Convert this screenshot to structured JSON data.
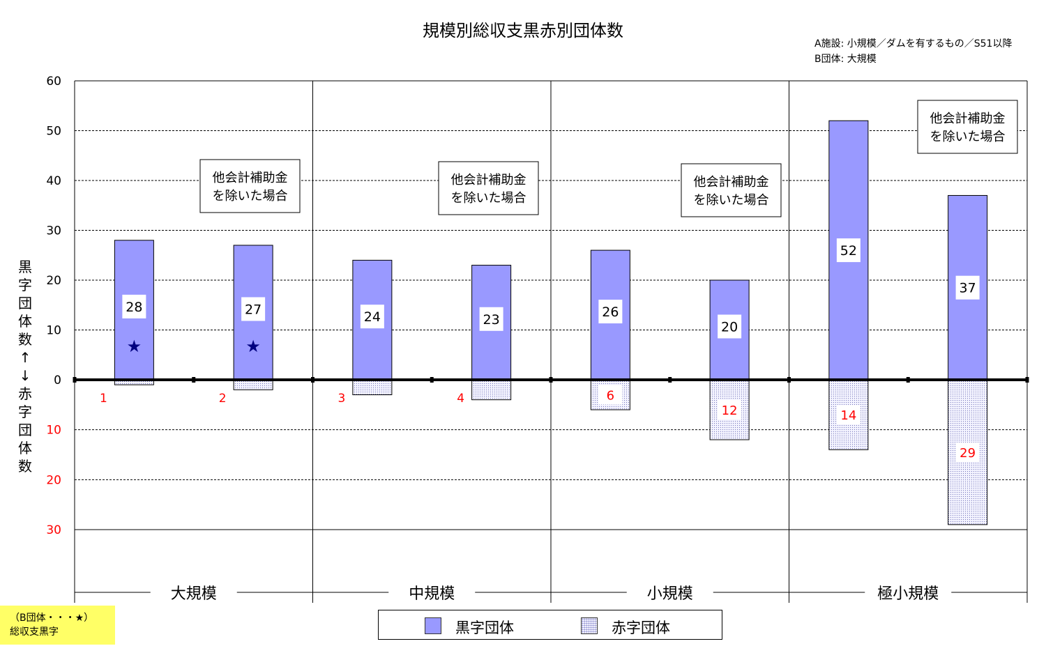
{
  "title": "規模別総収支黒赤別団体数",
  "notes": [
    "A施設: 小規模／ダムを有するもの／S51以降",
    "B団体: 大規模"
  ],
  "ylabel": "黒字団体数↑↓赤字団体数",
  "legend": {
    "black": "黒字団体",
    "red": "赤字団体"
  },
  "footnote": {
    "line1": "（B団体・・・★）",
    "line2": "総収支黒字"
  },
  "annotation_box": "他会計補助金を除いた場合",
  "colors": {
    "black_bar": "#9999ff",
    "red_label": "#ff0000",
    "star": "#000080",
    "footnote_bg": "#ffff66"
  },
  "chart_data": {
    "type": "bar",
    "title": "規模別総収支黒赤別団体数",
    "ylim_top": [
      0,
      60
    ],
    "ylim_bottom": [
      0,
      30
    ],
    "yticks_top": [
      0,
      10,
      20,
      30,
      40,
      50,
      60
    ],
    "yticks_bottom": [
      10,
      20,
      30
    ],
    "groups": [
      "大規模",
      "中規模",
      "小規模",
      "極小規模"
    ],
    "series": [
      {
        "name": "黒字団体",
        "values": [
          28,
          27,
          24,
          23,
          26,
          20,
          52,
          37
        ]
      },
      {
        "name": "赤字団体",
        "values": [
          1,
          2,
          3,
          4,
          6,
          12,
          14,
          29
        ]
      }
    ],
    "star_bars": [
      0,
      1
    ],
    "annotated_bars": [
      1,
      3,
      5,
      7
    ]
  }
}
